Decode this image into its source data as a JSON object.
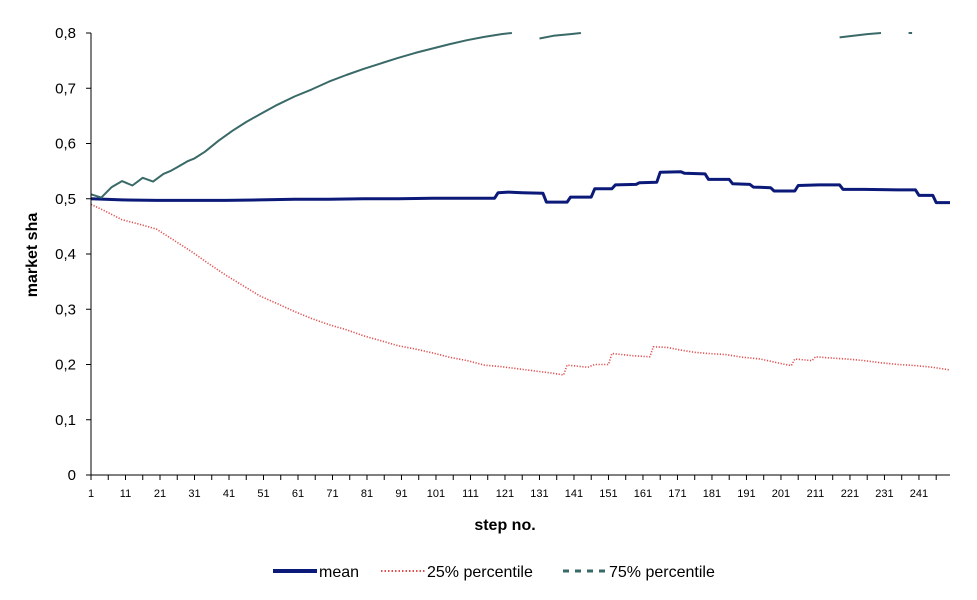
{
  "chart_data": {
    "type": "line",
    "xlabel": "step no.",
    "ylabel": "market sha",
    "xlim": [
      1,
      250
    ],
    "ylim": [
      0,
      0.8
    ],
    "x_ticks": [
      1,
      11,
      21,
      31,
      41,
      51,
      61,
      71,
      81,
      91,
      101,
      111,
      121,
      131,
      141,
      151,
      161,
      171,
      181,
      191,
      201,
      211,
      221,
      231,
      241
    ],
    "y_ticks": [
      "0",
      "0,1",
      "0,2",
      "0,3",
      "0,4",
      "0,5",
      "0,6",
      "0,7",
      "0,8"
    ],
    "y_tick_values": [
      0,
      0.1,
      0.2,
      0.3,
      0.4,
      0.5,
      0.6,
      0.7,
      0.8
    ],
    "grid": false,
    "legend_position": "bottom",
    "series": [
      {
        "name": "mean",
        "color": "#0b1a78",
        "style": "solid",
        "points": [
          [
            1,
            0.5
          ],
          [
            10,
            0.498
          ],
          [
            20,
            0.497
          ],
          [
            30,
            0.497
          ],
          [
            40,
            0.497
          ],
          [
            50,
            0.498
          ],
          [
            60,
            0.499
          ],
          [
            70,
            0.499
          ],
          [
            80,
            0.5
          ],
          [
            90,
            0.5
          ],
          [
            100,
            0.501
          ],
          [
            110,
            0.501
          ],
          [
            118,
            0.501
          ],
          [
            119,
            0.511
          ],
          [
            122,
            0.512
          ],
          [
            126,
            0.511
          ],
          [
            132,
            0.51
          ],
          [
            133,
            0.494
          ],
          [
            139,
            0.494
          ],
          [
            140,
            0.503
          ],
          [
            146,
            0.503
          ],
          [
            147,
            0.518
          ],
          [
            152,
            0.518
          ],
          [
            153,
            0.525
          ],
          [
            159,
            0.526
          ],
          [
            160,
            0.529
          ],
          [
            165,
            0.53
          ],
          [
            166,
            0.548
          ],
          [
            172,
            0.549
          ],
          [
            173,
            0.546
          ],
          [
            179,
            0.545
          ],
          [
            180,
            0.535
          ],
          [
            186,
            0.535
          ],
          [
            187,
            0.527
          ],
          [
            192,
            0.526
          ],
          [
            193,
            0.521
          ],
          [
            198,
            0.52
          ],
          [
            199,
            0.514
          ],
          [
            205,
            0.514
          ],
          [
            206,
            0.524
          ],
          [
            212,
            0.525
          ],
          [
            218,
            0.525
          ],
          [
            219,
            0.517
          ],
          [
            225,
            0.517
          ],
          [
            235,
            0.516
          ],
          [
            240,
            0.516
          ],
          [
            241,
            0.506
          ],
          [
            245,
            0.506
          ],
          [
            246,
            0.493
          ],
          [
            250,
            0.493
          ]
        ]
      },
      {
        "name": "25% percentile",
        "color": "#e05050",
        "style": "dotted",
        "points": [
          [
            1,
            0.49
          ],
          [
            5,
            0.478
          ],
          [
            10,
            0.462
          ],
          [
            15,
            0.454
          ],
          [
            20,
            0.445
          ],
          [
            25,
            0.425
          ],
          [
            30,
            0.405
          ],
          [
            35,
            0.383
          ],
          [
            40,
            0.362
          ],
          [
            45,
            0.343
          ],
          [
            50,
            0.324
          ],
          [
            55,
            0.31
          ],
          [
            60,
            0.296
          ],
          [
            65,
            0.283
          ],
          [
            70,
            0.272
          ],
          [
            75,
            0.263
          ],
          [
            80,
            0.252
          ],
          [
            85,
            0.243
          ],
          [
            90,
            0.234
          ],
          [
            95,
            0.228
          ],
          [
            100,
            0.221
          ],
          [
            105,
            0.213
          ],
          [
            110,
            0.207
          ],
          [
            115,
            0.199
          ],
          [
            120,
            0.196
          ],
          [
            125,
            0.192
          ],
          [
            130,
            0.188
          ],
          [
            135,
            0.184
          ],
          [
            138,
            0.181
          ],
          [
            139,
            0.199
          ],
          [
            145,
            0.195
          ],
          [
            147,
            0.2
          ],
          [
            151,
            0.2
          ],
          [
            152,
            0.22
          ],
          [
            158,
            0.216
          ],
          [
            163,
            0.214
          ],
          [
            164,
            0.232
          ],
          [
            168,
            0.231
          ],
          [
            172,
            0.226
          ],
          [
            176,
            0.222
          ],
          [
            180,
            0.22
          ],
          [
            185,
            0.218
          ],
          [
            190,
            0.213
          ],
          [
            195,
            0.21
          ],
          [
            200,
            0.203
          ],
          [
            204,
            0.198
          ],
          [
            205,
            0.21
          ],
          [
            210,
            0.207
          ],
          [
            211,
            0.214
          ],
          [
            215,
            0.212
          ],
          [
            220,
            0.21
          ],
          [
            225,
            0.207
          ],
          [
            230,
            0.203
          ],
          [
            235,
            0.2
          ],
          [
            240,
            0.198
          ],
          [
            245,
            0.195
          ],
          [
            250,
            0.19
          ]
        ]
      },
      {
        "name": "75% percentile",
        "color": "#3a6a68",
        "style": "solid",
        "points": [
          [
            1,
            0.508
          ],
          [
            4,
            0.502
          ],
          [
            7,
            0.521
          ],
          [
            10,
            0.532
          ],
          [
            13,
            0.524
          ],
          [
            16,
            0.538
          ],
          [
            19,
            0.531
          ],
          [
            22,
            0.545
          ],
          [
            24,
            0.55
          ],
          [
            26,
            0.557
          ],
          [
            29,
            0.568
          ],
          [
            31,
            0.573
          ],
          [
            34,
            0.585
          ],
          [
            38,
            0.605
          ],
          [
            42,
            0.623
          ],
          [
            46,
            0.639
          ],
          [
            50,
            0.653
          ],
          [
            55,
            0.67
          ],
          [
            60,
            0.685
          ],
          [
            65,
            0.698
          ],
          [
            70,
            0.712
          ],
          [
            75,
            0.724
          ],
          [
            80,
            0.735
          ],
          [
            85,
            0.745
          ],
          [
            90,
            0.755
          ],
          [
            95,
            0.764
          ],
          [
            100,
            0.772
          ],
          [
            105,
            0.78
          ],
          [
            110,
            0.787
          ],
          [
            115,
            0.793
          ],
          [
            120,
            0.798
          ],
          [
            123,
            0.8
          ],
          [
            null,
            null
          ],
          [
            131,
            0.79
          ],
          [
            135,
            0.795
          ],
          [
            140,
            0.798
          ],
          [
            143,
            0.8
          ],
          [
            null,
            null
          ],
          [
            218,
            0.792
          ],
          [
            222,
            0.795
          ],
          [
            226,
            0.798
          ],
          [
            230,
            0.8
          ],
          [
            null,
            null
          ],
          [
            238,
            0.8
          ],
          [
            239,
            0.8
          ]
        ]
      }
    ]
  }
}
